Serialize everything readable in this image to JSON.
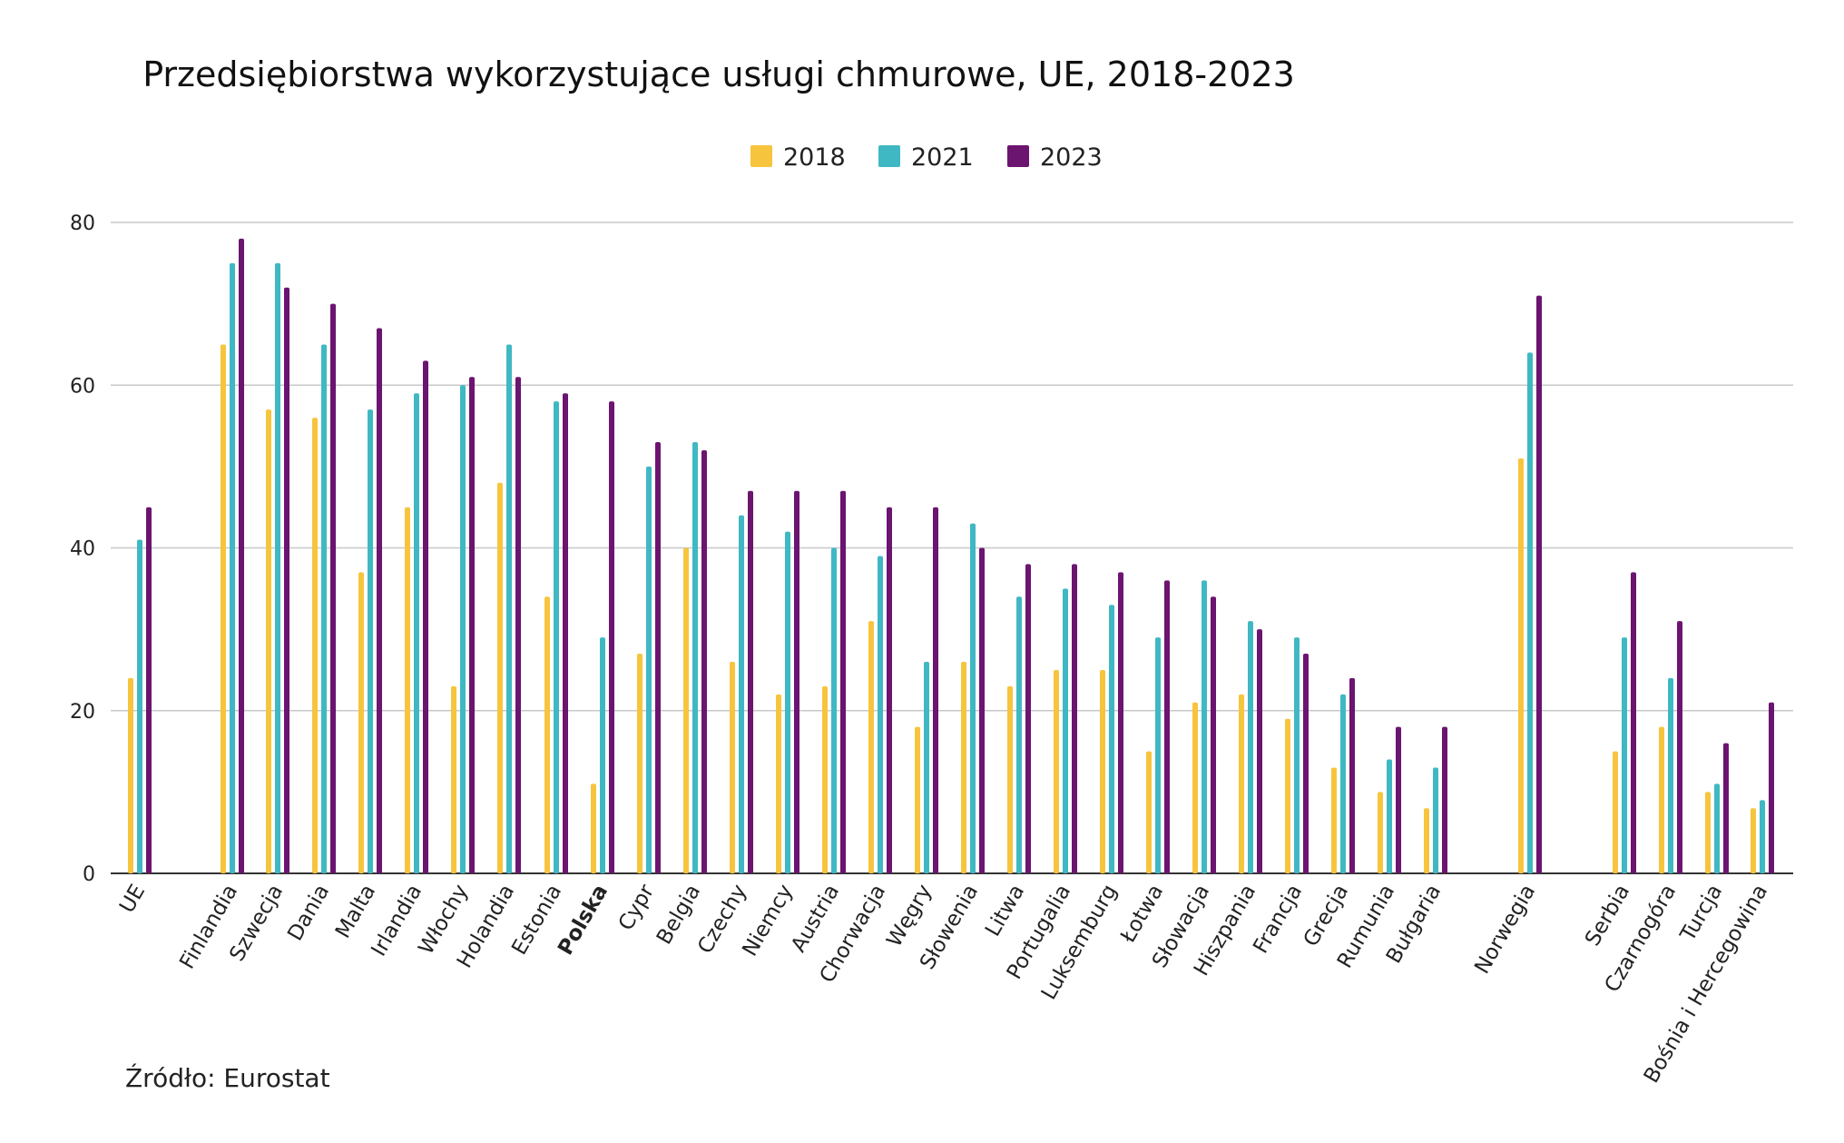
{
  "chart_data": {
    "type": "bar",
    "title": "Przedsiębiorstwa wykorzystujące usługi chmurowe, UE, 2018-2023",
    "source": "Źródło: Eurostat",
    "xlabel": "",
    "ylabel": "",
    "ylim": [
      0,
      80
    ],
    "yticks": [
      0,
      20,
      40,
      60,
      80
    ],
    "grid": true,
    "legend_position": "top-center",
    "highlighted_category": "Polska",
    "categories": [
      "UE",
      "Finlandia",
      "Szwecja",
      "Dania",
      "Malta",
      "Irlandia",
      "Włochy",
      "Holandia",
      "Estonia",
      "Polska",
      "Cypr",
      "Belgia",
      "Czechy",
      "Niemcy",
      "Austria",
      "Chorwacja",
      "Węgry",
      "Słowenia",
      "Litwa",
      "Portugalia",
      "Luksemburg",
      "Łotwa",
      "Słowacja",
      "Hiszpania",
      "Francja",
      "Grecja",
      "Rumunia",
      "Bułgaria",
      "Norwegia",
      "Serbia",
      "Czarnogóra",
      "Turcja",
      "Bośnia i Hercegowina"
    ],
    "series": [
      {
        "name": "2018",
        "color": "#F7C43D",
        "values": [
          24,
          65,
          57,
          56,
          37,
          45,
          23,
          48,
          34,
          11,
          27,
          40,
          26,
          22,
          23,
          31,
          18,
          26,
          23,
          25,
          25,
          15,
          21,
          22,
          19,
          13,
          10,
          8,
          51,
          15,
          18,
          10,
          8
        ]
      },
      {
        "name": "2021",
        "color": "#3FB8C4",
        "values": [
          41,
          75,
          75,
          65,
          57,
          59,
          60,
          65,
          58,
          29,
          50,
          53,
          44,
          42,
          40,
          39,
          26,
          43,
          34,
          35,
          33,
          29,
          36,
          31,
          29,
          22,
          14,
          13,
          64,
          29,
          24,
          11,
          9
        ]
      },
      {
        "name": "2023",
        "color": "#6B1470",
        "values": [
          45,
          78,
          72,
          70,
          67,
          63,
          61,
          61,
          59,
          58,
          53,
          52,
          47,
          47,
          47,
          45,
          45,
          40,
          38,
          38,
          37,
          36,
          34,
          30,
          27,
          24,
          18,
          18,
          71,
          37,
          31,
          16,
          21
        ]
      }
    ]
  }
}
